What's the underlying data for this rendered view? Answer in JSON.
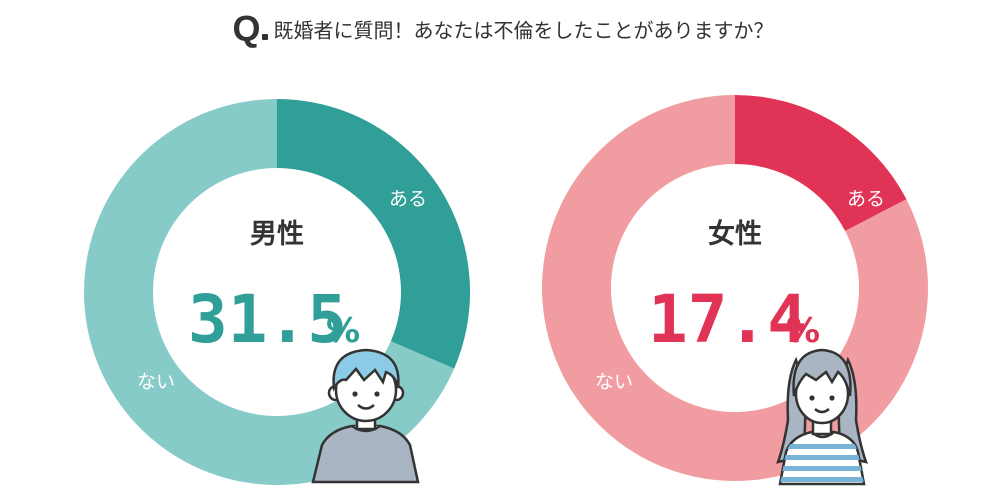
{
  "title": {
    "q_mark": "Q",
    "question": "既婚者に質問！あなたは不倫をしたことがありますか？"
  },
  "chart_data": [
    {
      "type": "pie",
      "variant": "donut",
      "gender_label": "男性",
      "percent_text": "31.5",
      "percent_sign": "%",
      "slices": [
        {
          "label": "ある",
          "value": 31.5
        },
        {
          "label": "ない",
          "value": 68.5
        }
      ],
      "colors": {
        "yes": "#2f9f98",
        "no": "#86cbc8",
        "accent": "#2f9f98"
      },
      "avatar": "man-avatar"
    },
    {
      "type": "pie",
      "variant": "donut",
      "gender_label": "女性",
      "percent_text": "17.4",
      "percent_sign": "%",
      "slices": [
        {
          "label": "ある",
          "value": 17.4
        },
        {
          "label": "ない",
          "value": 82.6
        }
      ],
      "colors": {
        "yes": "#e03355",
        "no": "#f19ca0",
        "accent": "#e03355"
      },
      "avatar": "woman-avatar"
    }
  ]
}
